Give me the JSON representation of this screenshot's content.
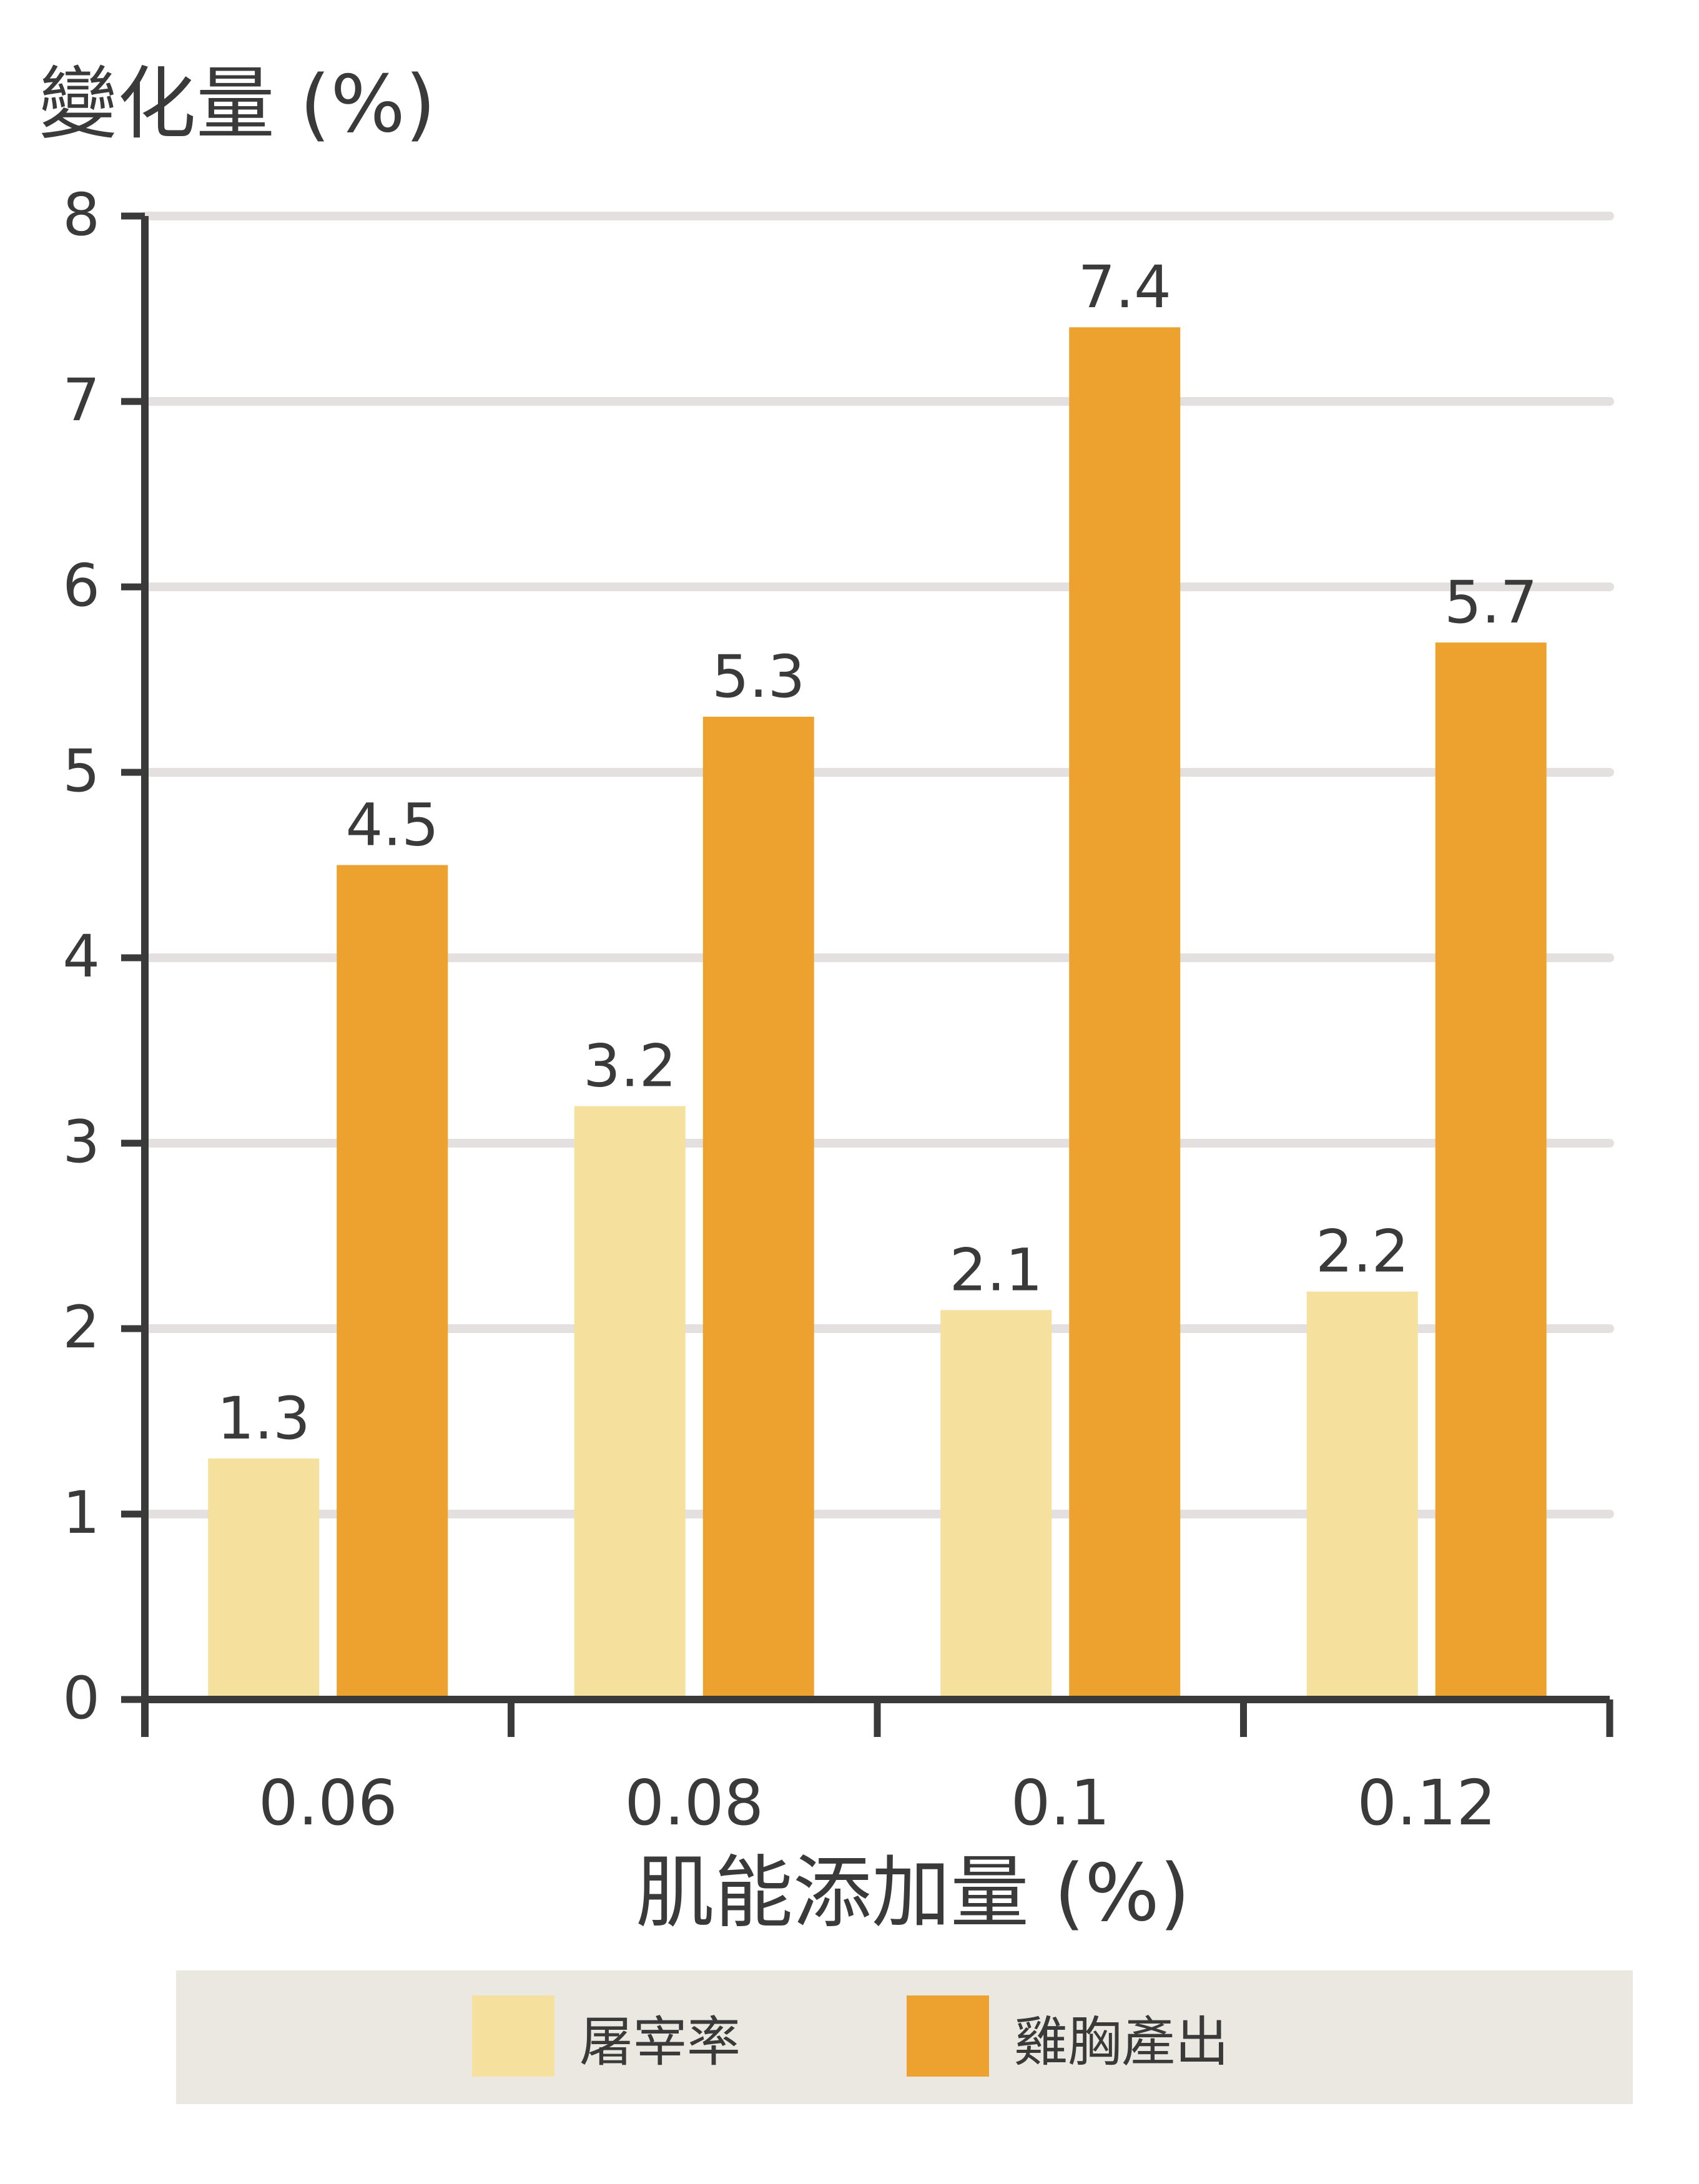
{
  "chart_data": {
    "type": "bar",
    "ylabel": "變化量 (%)",
    "xlabel": "肌能添加量 (%)",
    "categories": [
      "0.06",
      "0.08",
      "0.1",
      "0.12"
    ],
    "series": [
      {
        "name": "屠宰率",
        "values": [
          1.3,
          3.2,
          2.1,
          2.2
        ],
        "color": "#F6E09E"
      },
      {
        "name": "雞胸產出",
        "values": [
          4.5,
          5.3,
          7.4,
          5.7
        ],
        "color": "#EDA22F"
      }
    ],
    "data_labels": [
      [
        "1.3",
        "3.2",
        "2.1",
        "2.2"
      ],
      [
        "4.5",
        "5.3",
        "7.4",
        "5.7"
      ]
    ],
    "ylim": [
      0,
      8
    ],
    "yticks": [
      "0",
      "1",
      "2",
      "3",
      "4",
      "5",
      "6",
      "7",
      "8"
    ],
    "grid": true,
    "legend_position": "bottom",
    "colors": {
      "axis": "#3a3a3a",
      "grid": "#E3E0DF",
      "legend_background": "#EBE8E1",
      "text": "#3a3a3a"
    }
  }
}
